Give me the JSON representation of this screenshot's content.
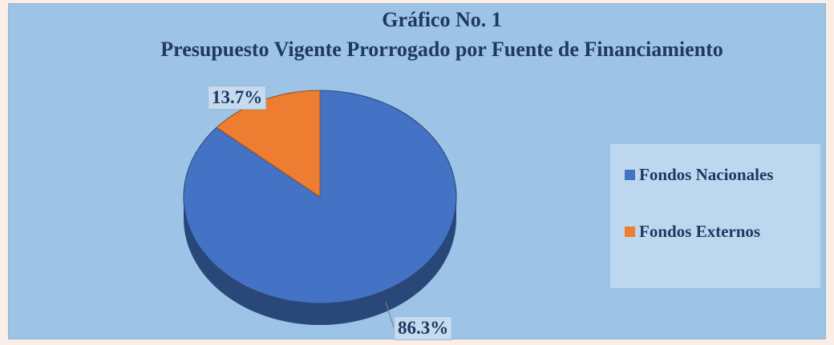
{
  "chart_data": {
    "type": "pie",
    "title": "Gráfico No. 1",
    "subtitle": "Presupuesto  Vigente  Prorrogado por Fuente de Financiamiento",
    "categories": [
      "Fondos Nacionales",
      "Fondos Externos"
    ],
    "values": [
      86.3,
      13.7
    ],
    "value_labels": [
      "86.3%",
      "13.7%"
    ],
    "colors": [
      "#4472c4",
      "#ed7d31"
    ],
    "legend": "right"
  }
}
